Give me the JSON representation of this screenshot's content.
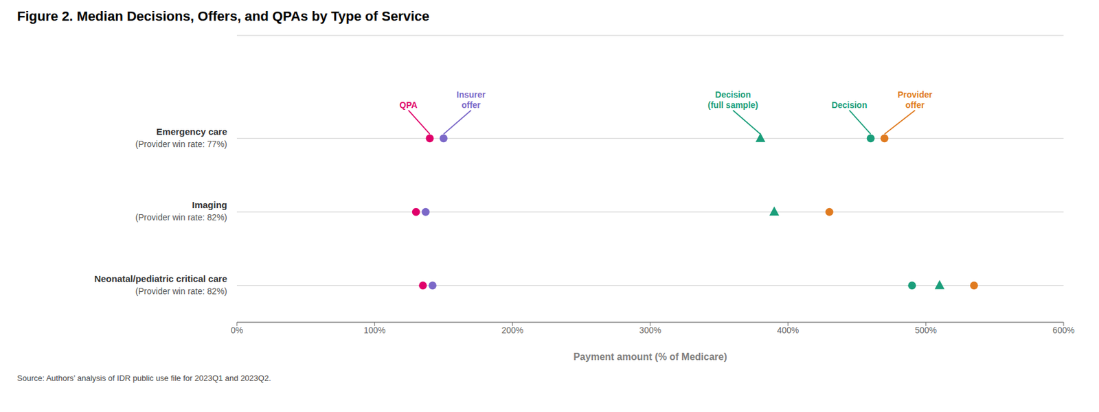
{
  "chart_data": {
    "type": "scatter",
    "title": "Figure 2. Median Decisions, Offers, and QPAs by Type of Service",
    "source": "Source: Authors’ analysis of IDR public use file for 2023Q1 and 2023Q2.",
    "x_label": "Payment amount (% of Medicare)",
    "categories": [
      "Emergency care",
      "Imaging",
      "Neonatal/pediatric critical care"
    ],
    "category_notes": [
      "(Provider win rate: 77%)",
      "(Provider win rate: 82%)",
      "(Provider win rate: 82%)"
    ],
    "series": [
      {
        "name": "QPA",
        "color": "#e0006a",
        "marker": "circle",
        "values": [
          140,
          130,
          135
        ]
      },
      {
        "name": "Insurer\noffer",
        "color": "#7b68c8",
        "marker": "circle",
        "values": [
          150,
          137,
          142
        ]
      },
      {
        "name": "Decision\n(full sample)",
        "color": "#1a9e7a",
        "marker": "triangle",
        "values": [
          380,
          390,
          510
        ]
      },
      {
        "name": "Decision",
        "color": "#1a9e7a",
        "marker": "circle",
        "values": [
          460,
          null,
          490
        ]
      },
      {
        "name": "Provider\noffer",
        "color": "#e07b20",
        "marker": "circle",
        "values": [
          470,
          430,
          535
        ]
      }
    ],
    "xlim": [
      0,
      600
    ],
    "xticks": [
      {
        "value": 0,
        "label": "0%"
      },
      {
        "value": 100,
        "label": "100%"
      },
      {
        "value": 200,
        "label": "200%"
      },
      {
        "value": 300,
        "label": "300%"
      },
      {
        "value": 400,
        "label": "400%"
      },
      {
        "value": 500,
        "label": "500%"
      },
      {
        "value": 600,
        "label": "600%"
      }
    ],
    "grid": true
  }
}
